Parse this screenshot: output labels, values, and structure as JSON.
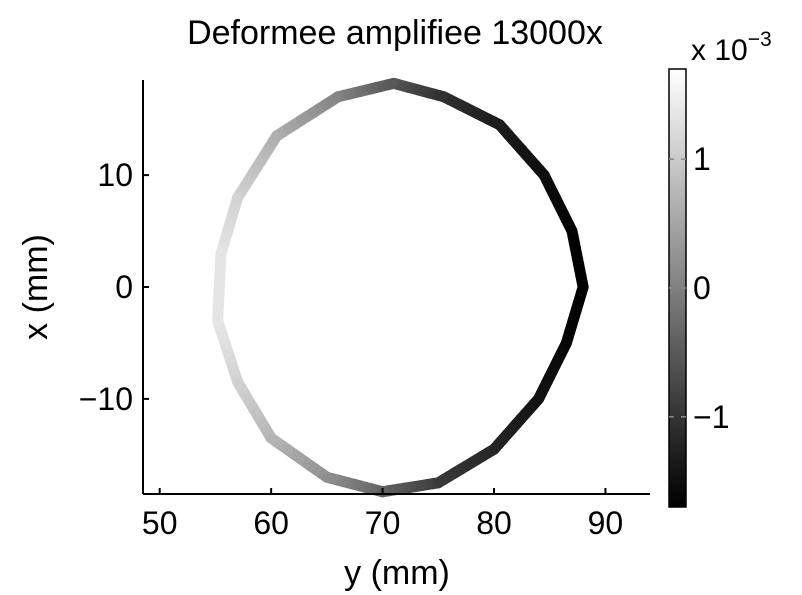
{
  "chart_data": {
    "type": "scatter",
    "title": "Deformee amplifiee 13000x",
    "xlabel": "y (mm)",
    "ylabel": "x (mm)",
    "xlim": [
      48.5,
      94
    ],
    "ylim": [
      -18.5,
      18.5
    ],
    "xticks": [
      50,
      60,
      70,
      80,
      90
    ],
    "xtick_labels": [
      "50",
      "60",
      "70",
      "80",
      "90"
    ],
    "yticks": [
      -10,
      0,
      10
    ],
    "ytick_labels": [
      "−10",
      "0",
      "10"
    ],
    "grid": false,
    "colormap": "gray",
    "colorbar": {
      "multiplier_label": "x 10",
      "multiplier_exponent": "−3",
      "clim": [
        -1.7,
        1.7
      ],
      "ticks": [
        -1,
        0,
        1
      ],
      "tick_labels": [
        "−1",
        "0",
        "1"
      ]
    },
    "points": [
      {
        "y": 88.0,
        "x": 0.0,
        "value": -1.7
      },
      {
        "y": 87.0,
        "x": 5.0,
        "value": -1.65
      },
      {
        "y": 86.5,
        "x": -5.0,
        "value": -1.62
      },
      {
        "y": 84.5,
        "x": 10.0,
        "value": -1.5
      },
      {
        "y": 84.0,
        "x": -10.0,
        "value": -1.45
      },
      {
        "y": 80.5,
        "x": 14.5,
        "value": -1.3
      },
      {
        "y": 80.0,
        "x": -14.5,
        "value": -1.2
      },
      {
        "y": 75.5,
        "x": 17.0,
        "value": -1.0
      },
      {
        "y": 75.0,
        "x": -17.5,
        "value": -0.9
      },
      {
        "y": 71.0,
        "x": 18.2,
        "value": -0.45
      },
      {
        "y": 70.0,
        "x": -18.3,
        "value": -0.35
      },
      {
        "y": 66.0,
        "x": 17.0,
        "value": 0.2
      },
      {
        "y": 65.0,
        "x": -17.0,
        "value": 0.3
      },
      {
        "y": 60.5,
        "x": 13.5,
        "value": 0.8
      },
      {
        "y": 60.0,
        "x": -13.5,
        "value": 0.85
      },
      {
        "y": 57.0,
        "x": 8.0,
        "value": 1.3
      },
      {
        "y": 57.0,
        "x": -8.5,
        "value": 1.25
      },
      {
        "y": 55.5,
        "x": 3.0,
        "value": 1.55
      },
      {
        "y": 55.2,
        "x": -3.0,
        "value": 1.55
      }
    ]
  }
}
